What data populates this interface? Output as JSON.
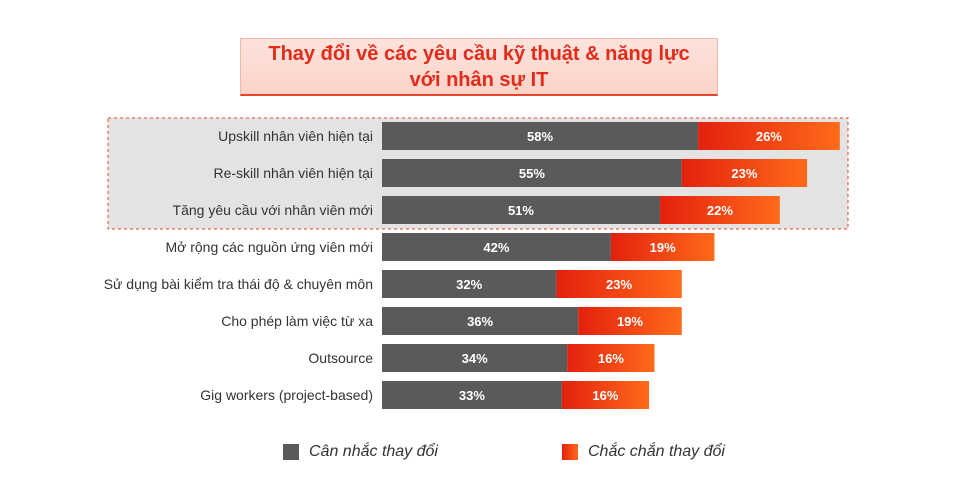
{
  "header": {
    "title_line1": "Thay đổi về các yêu cầu kỹ thuật & năng lực",
    "title_line2": "với nhân sự IT"
  },
  "colors": {
    "considering": "#5a5a5a",
    "certain_start": "#e3210e",
    "certain_end": "#ff6a1a",
    "highlight_bg": "#e3e3e3",
    "highlight_border": "#e8432a",
    "label_text": "#333333",
    "title_text": "#e32b1a"
  },
  "chart_data": {
    "type": "bar",
    "orientation": "horizontal",
    "stacked": true,
    "categories": [
      "Upskill nhân viên hiện tại",
      "Re-skill nhân viên hiện tại",
      "Tăng yêu cầu với nhân viên mới",
      "Mở rộng các nguồn ứng viên mới",
      "Sử dụng bài kiểm tra thái độ & chuyên môn",
      "Cho phép làm việc từ xa",
      "Outsource",
      "Gig workers (project-based)"
    ],
    "series": [
      {
        "name": "Cân nhắc thay đổi",
        "values": [
          58,
          55,
          51,
          42,
          32,
          36,
          34,
          33
        ]
      },
      {
        "name": "Chắc chắn thay đổi",
        "values": [
          26,
          23,
          22,
          19,
          23,
          19,
          16,
          16
        ]
      }
    ],
    "value_suffix": "%",
    "highlighted_categories": [
      0,
      1,
      2
    ],
    "legend_position": "bottom",
    "grid": false
  },
  "legend": {
    "considering_label": "Cân nhắc thay đổi",
    "certain_label": "Chắc chắn thay đổi"
  }
}
